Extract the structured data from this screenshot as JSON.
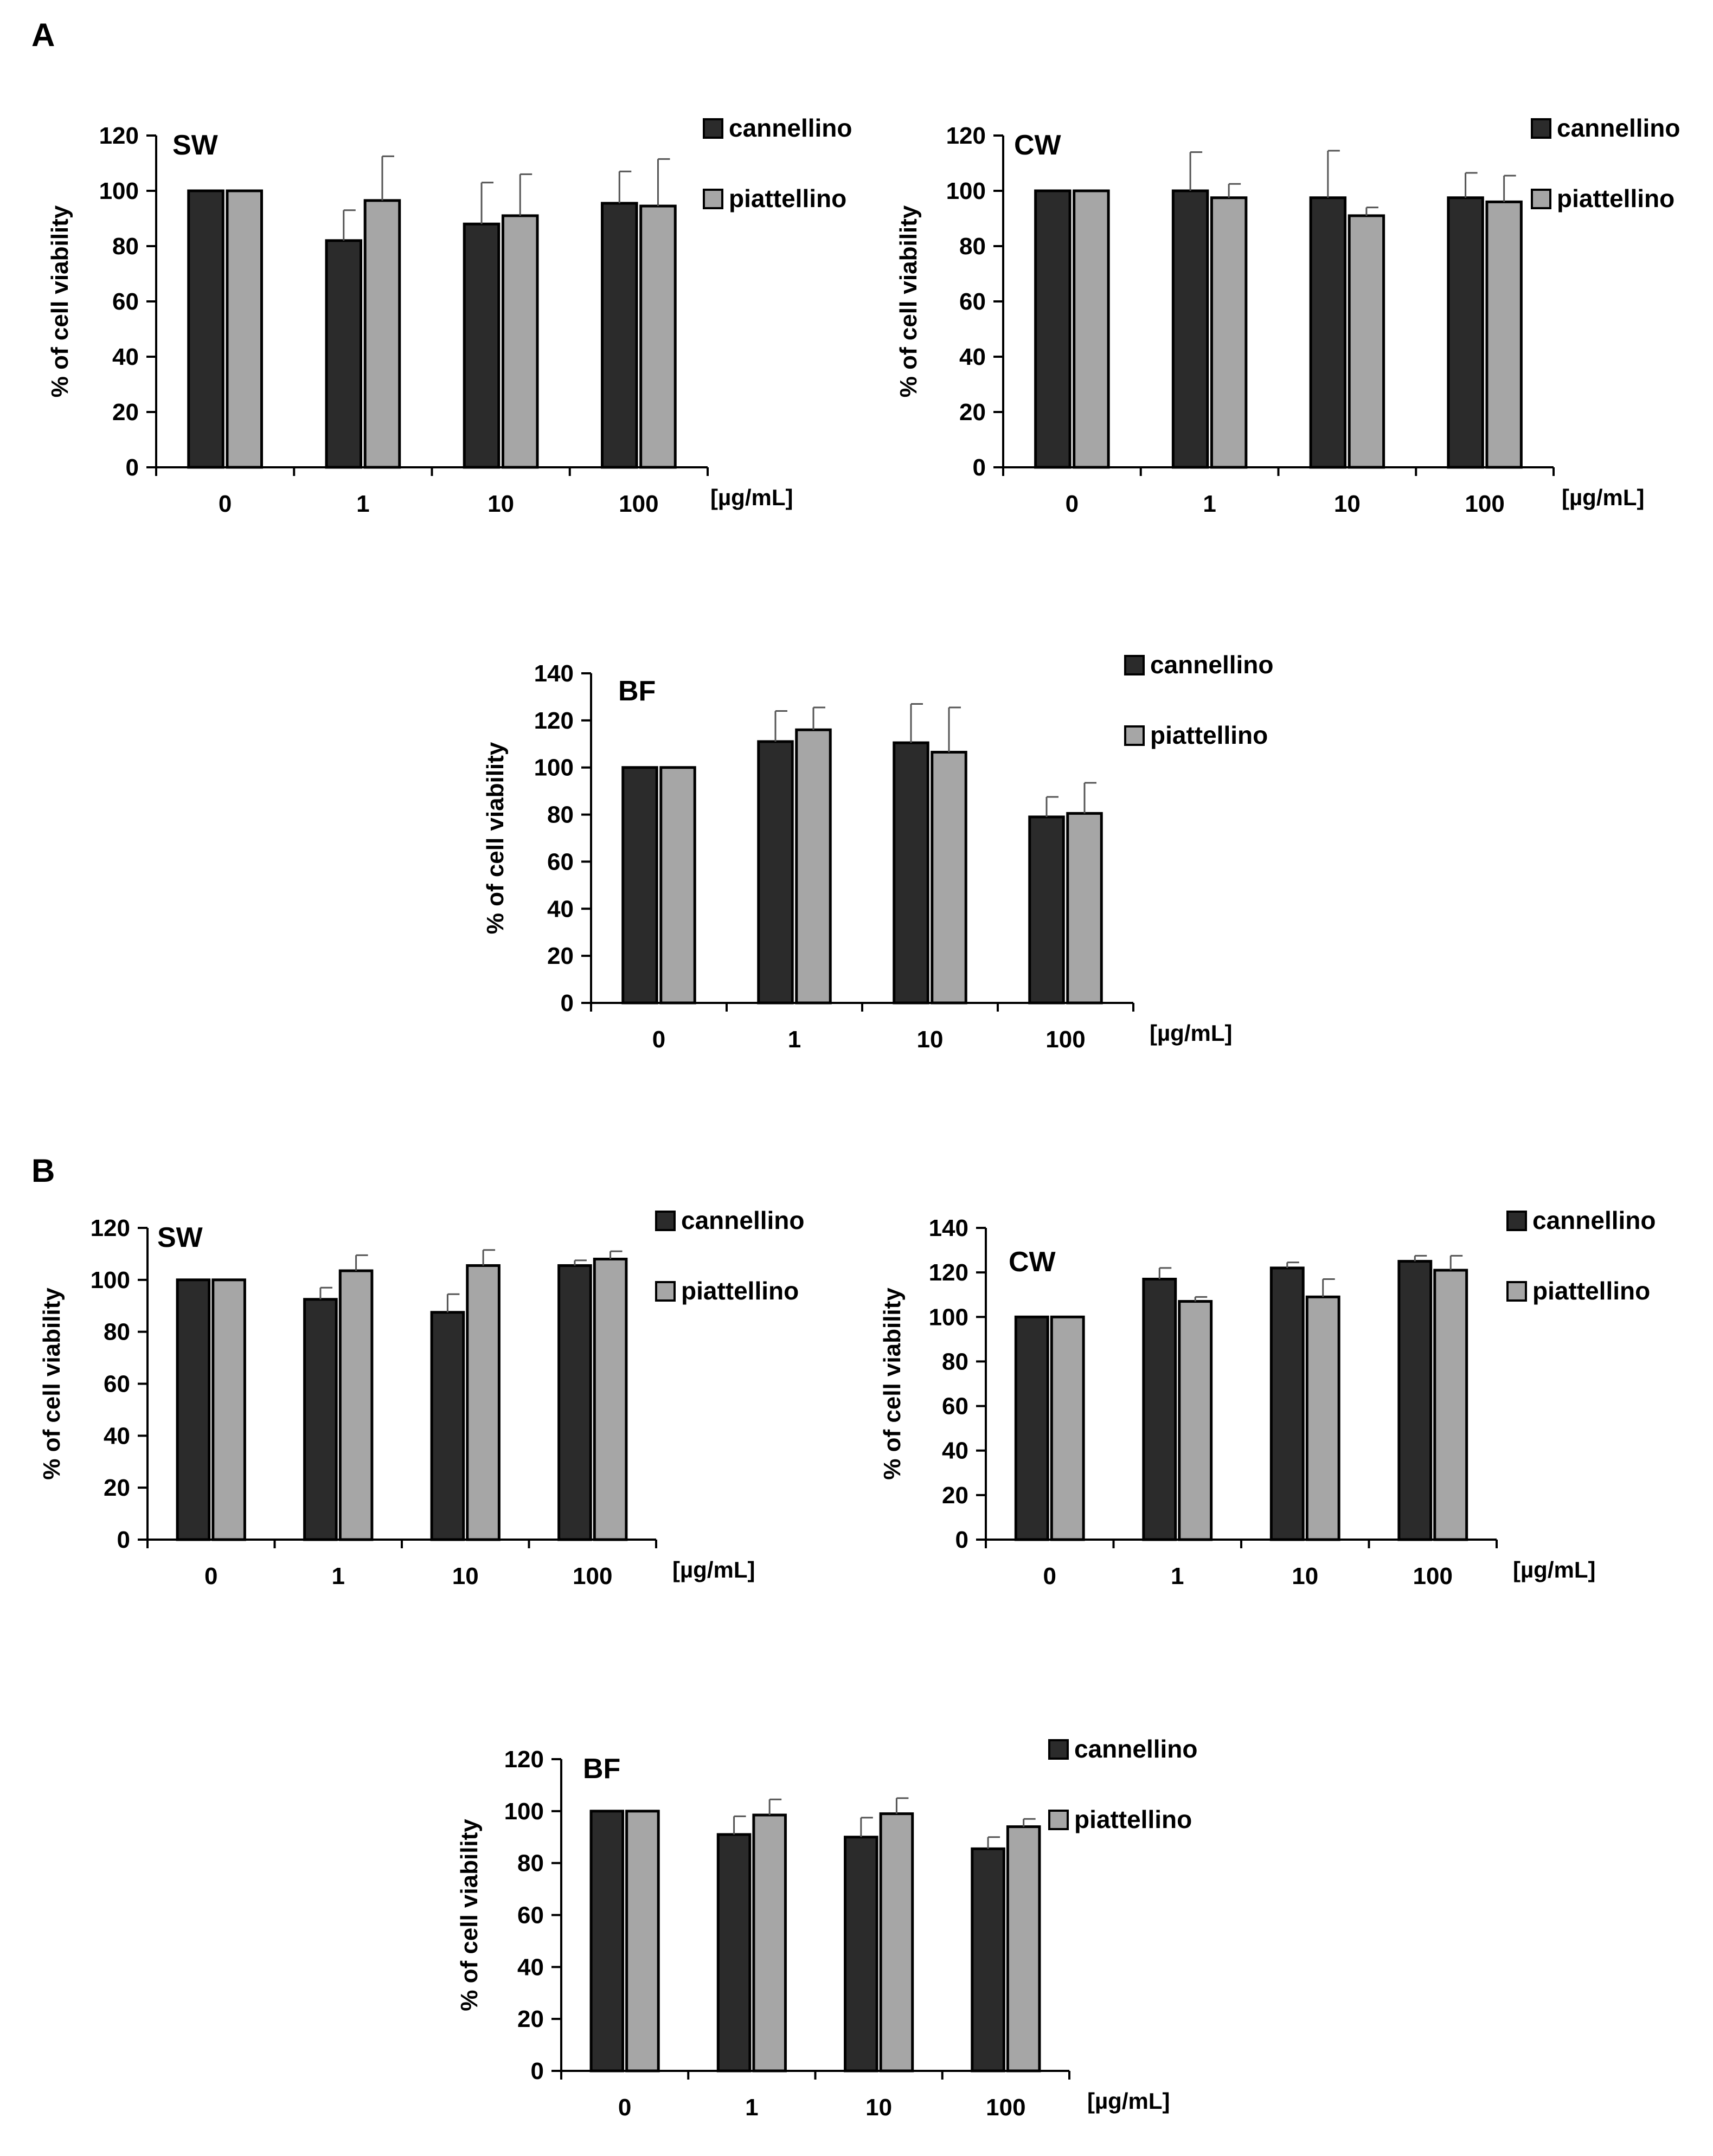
{
  "panels": [
    {
      "label": "A"
    },
    {
      "label": "B"
    }
  ],
  "colors": {
    "cannellino": "#2b2b2b",
    "piattellino": "#a6a6a6",
    "outline": "#000000",
    "error": "#555555"
  },
  "chart_data": [
    {
      "type": "bar",
      "panel": "A",
      "title": "SW",
      "categories": [
        "0",
        "1",
        "10",
        "100"
      ],
      "series": [
        {
          "name": "cannellino",
          "values": [
            100,
            82,
            88,
            95.5
          ],
          "errors": [
            0.5,
            11,
            15,
            11.5
          ]
        },
        {
          "name": "piattellino",
          "values": [
            100,
            96.5,
            91,
            94.5
          ],
          "errors": [
            0.5,
            16,
            15,
            17
          ]
        }
      ],
      "ylabel": "% of cell viability",
      "xlabel": "[µg/mL]",
      "ylim": [
        0,
        120
      ],
      "yticks": [
        0,
        20,
        40,
        60,
        80,
        100,
        120
      ],
      "legend": "top-right"
    },
    {
      "type": "bar",
      "panel": "A",
      "title": "CW",
      "categories": [
        "0",
        "1",
        "10",
        "100"
      ],
      "series": [
        {
          "name": "cannellino",
          "values": [
            100,
            100,
            97.5,
            97.5
          ],
          "errors": [
            0.5,
            14,
            17,
            9
          ]
        },
        {
          "name": "piattellino",
          "values": [
            100,
            97.5,
            91,
            96
          ],
          "errors": [
            0.5,
            5,
            3,
            9.5
          ]
        }
      ],
      "ylabel": "% of cell viability",
      "xlabel": "[µg/mL]",
      "ylim": [
        0,
        120
      ],
      "yticks": [
        0,
        20,
        40,
        60,
        80,
        100,
        120
      ],
      "legend": "top-right"
    },
    {
      "type": "bar",
      "panel": "A",
      "title": "BF",
      "categories": [
        "0",
        "1",
        "10",
        "100"
      ],
      "series": [
        {
          "name": "cannellino",
          "values": [
            100,
            111,
            110.5,
            79
          ],
          "errors": [
            0.5,
            13,
            16.5,
            8.5
          ]
        },
        {
          "name": "piattellino",
          "values": [
            100,
            116,
            106.5,
            80.5
          ],
          "errors": [
            0.5,
            9.5,
            19,
            13
          ]
        }
      ],
      "ylabel": "% of cell viability",
      "xlabel": "[µg/mL]",
      "ylim": [
        0,
        140
      ],
      "yticks": [
        0,
        20,
        40,
        60,
        80,
        100,
        120,
        140
      ],
      "legend": "top-right"
    },
    {
      "type": "bar",
      "panel": "B",
      "title": "SW",
      "categories": [
        "0",
        "1",
        "10",
        "100"
      ],
      "series": [
        {
          "name": "cannellino",
          "values": [
            100,
            92.5,
            87.5,
            105.5
          ],
          "errors": [
            0.5,
            4.5,
            7,
            2
          ]
        },
        {
          "name": "piattellino",
          "values": [
            100,
            103.5,
            105.5,
            108
          ],
          "errors": [
            0.5,
            6,
            6,
            3
          ]
        }
      ],
      "ylabel": "% of cell viability",
      "xlabel": "[µg/mL]",
      "ylim": [
        0,
        120
      ],
      "yticks": [
        0,
        20,
        40,
        60,
        80,
        100,
        120
      ],
      "legend": "top-right"
    },
    {
      "type": "bar",
      "panel": "B",
      "title": "CW",
      "categories": [
        "0",
        "1",
        "10",
        "100"
      ],
      "series": [
        {
          "name": "cannellino",
          "values": [
            100,
            117,
            122,
            125
          ],
          "errors": [
            0.5,
            5,
            2.5,
            2.5
          ]
        },
        {
          "name": "piattellino",
          "values": [
            100,
            107,
            109,
            121
          ],
          "errors": [
            0.5,
            2,
            8,
            6.5
          ]
        }
      ],
      "ylabel": "% of cell viability",
      "xlabel": "[µg/mL]",
      "ylim": [
        0,
        140
      ],
      "yticks": [
        0,
        20,
        40,
        60,
        80,
        100,
        120,
        140
      ],
      "legend": "top-right"
    },
    {
      "type": "bar",
      "panel": "B",
      "title": "BF",
      "categories": [
        "0",
        "1",
        "10",
        "100"
      ],
      "series": [
        {
          "name": "cannellino",
          "values": [
            100,
            91,
            90,
            85.5
          ],
          "errors": [
            0.5,
            7,
            7.5,
            4.5
          ]
        },
        {
          "name": "piattellino",
          "values": [
            100,
            98.5,
            99,
            94
          ],
          "errors": [
            0.5,
            6,
            6,
            3
          ]
        }
      ],
      "ylabel": "% of cell viability",
      "xlabel": "[µg/mL]",
      "ylim": [
        0,
        120
      ],
      "yticks": [
        0,
        20,
        40,
        60,
        80,
        100,
        120
      ],
      "legend": "top-right"
    }
  ]
}
